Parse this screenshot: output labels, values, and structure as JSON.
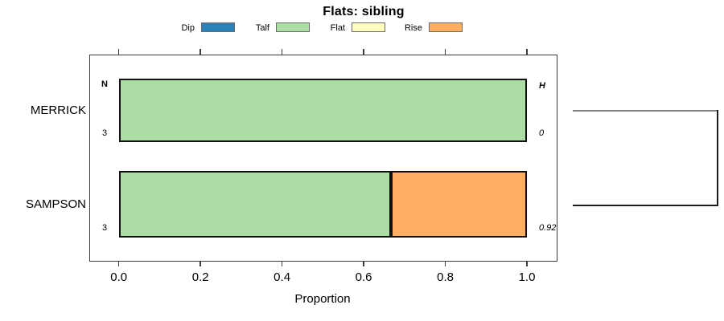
{
  "chart_data": {
    "type": "bar",
    "stacked": true,
    "orientation": "horizontal",
    "title": "Flats: sibling",
    "xlabel": "Proportion",
    "xlim": [
      0,
      1.07
    ],
    "xticks": [
      "0.0",
      "0.2",
      "0.4",
      "0.6",
      "0.8",
      "1.0"
    ],
    "categories": [
      "MERRICK",
      "SAMPSON"
    ],
    "series": [
      {
        "name": "Dip",
        "color": "#2B83BA",
        "values": [
          0,
          0
        ]
      },
      {
        "name": "Talf",
        "color": "#ABDDA4",
        "values": [
          1.0,
          0.667
        ]
      },
      {
        "name": "Flat",
        "color": "#FFFFBF",
        "values": [
          0,
          0
        ]
      },
      {
        "name": "Rise",
        "color": "#FDAE61",
        "values": [
          0,
          0.333
        ]
      }
    ],
    "annotations": {
      "left_header": "N",
      "right_header": "H",
      "left_values": [
        "3",
        "3"
      ],
      "right_values": [
        "0",
        "0.92"
      ]
    },
    "legend_position": "top",
    "grid": false,
    "right_dendrogram": true
  }
}
